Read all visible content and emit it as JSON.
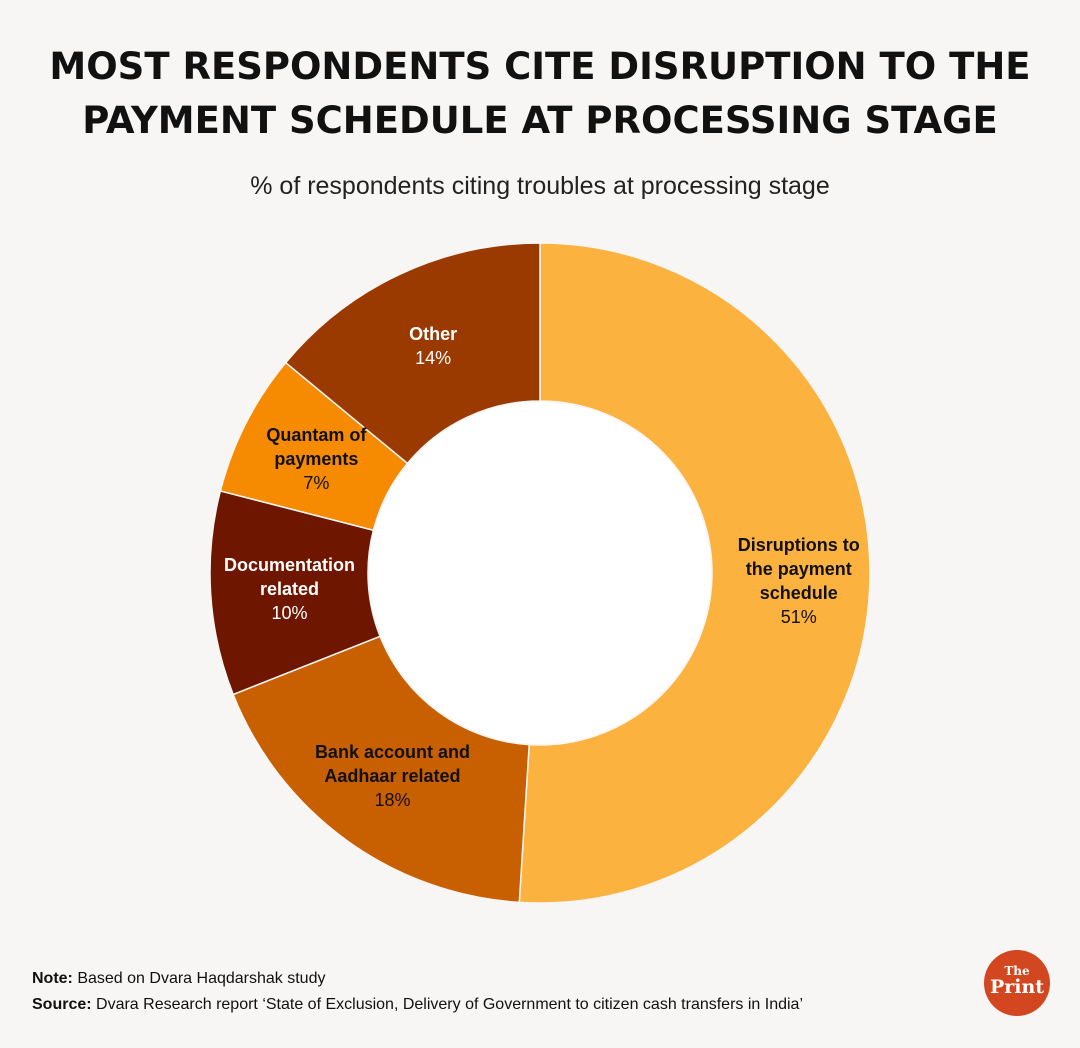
{
  "title_lines": [
    "MOST RESPONDENTS CITE DISRUPTION TO THE",
    "PAYMENT SCHEDULE AT PROCESSING STAGE"
  ],
  "subtitle": "% of respondents citing troubles at processing stage",
  "chart_data": {
    "type": "pie",
    "variant": "donut",
    "title": "MOST RESPONDENTS CITE DISRUPTION TO THE PAYMENT SCHEDULE AT PROCESSING STAGE",
    "subtitle": "% of respondents citing troubles at processing stage",
    "unit": "%",
    "slices": [
      {
        "label": "Disruptions to the payment schedule",
        "label_lines": [
          "Disruptions to",
          "the payment",
          "schedule"
        ],
        "value": 51,
        "value_label": "51%",
        "color": "#fcb23e",
        "text_color": "#111111"
      },
      {
        "label": "Bank account and Aadhaar related",
        "label_lines": [
          "Bank account and",
          "Aadhaar related"
        ],
        "value": 18,
        "value_label": "18%",
        "color": "#c85f00",
        "text_color": "#111111"
      },
      {
        "label": "Documentation related",
        "label_lines": [
          "Documentation",
          "related"
        ],
        "value": 10,
        "value_label": "10%",
        "color": "#6e1600",
        "text_color": "#ffffff"
      },
      {
        "label": "Quantam of payments",
        "label_lines": [
          "Quantam of",
          "payments"
        ],
        "value": 7,
        "value_label": "7%",
        "color": "#f68a00",
        "text_color": "#111111"
      },
      {
        "label": "Other",
        "label_lines": [
          "Other"
        ],
        "value": 14,
        "value_label": "14%",
        "color": "#9a3a00",
        "text_color": "#ffffff"
      }
    ]
  },
  "notes": {
    "note_label": "Note:",
    "note_text": " Based on Dvara Haqdarshak study",
    "source_label": "Source:",
    "source_text": " Dvara Research report ‘State of Exclusion, Delivery of Government to citizen cash transfers in India’"
  },
  "logo": {
    "line1": "The",
    "line2": "Print",
    "color": "#d2471f"
  }
}
